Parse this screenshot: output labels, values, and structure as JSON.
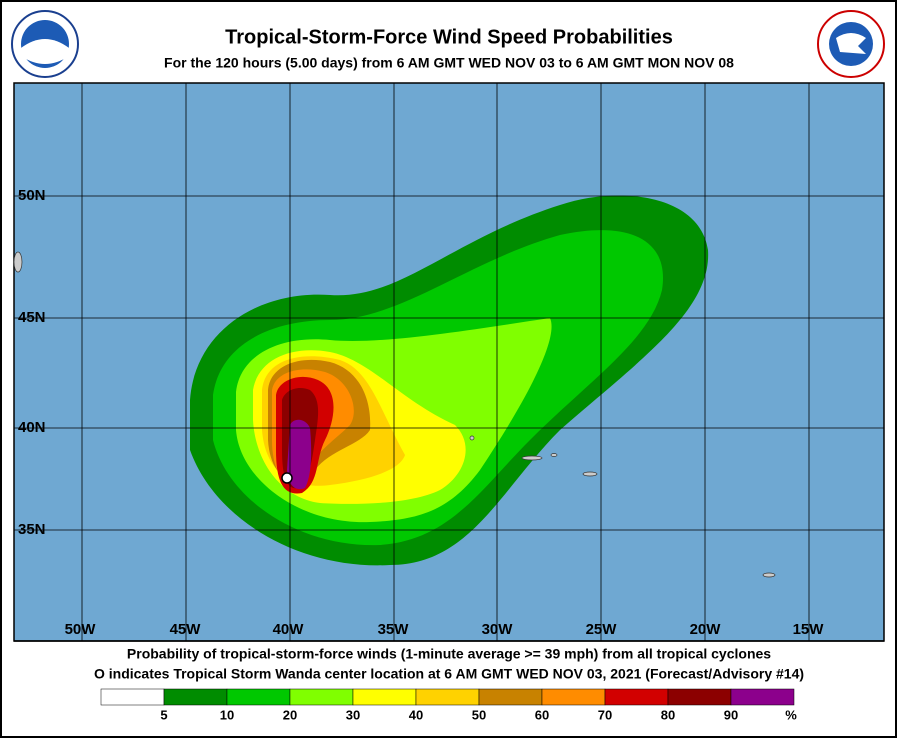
{
  "header": {
    "title": "Tropical-Storm-Force Wind Speed Probabilities",
    "subtitle": "For the 120 hours (5.00 days) from 6 AM GMT WED NOV 03 to 6 AM GMT MON NOV 08"
  },
  "map": {
    "lat_labels": [
      "50N",
      "45N",
      "40N",
      "35N"
    ],
    "lon_labels": [
      "50W",
      "45W",
      "40W",
      "35W",
      "30W",
      "25W",
      "20W",
      "15W"
    ]
  },
  "footer": {
    "line1": "Probability of tropical-storm-force winds (1-minute average >= 39 mph) from all tropical cyclones",
    "line2": "O indicates Tropical Storm Wanda center location at 6 AM GMT WED NOV 03, 2021 (Forecast/Advisory #14)"
  },
  "legend": {
    "ticks": [
      "5",
      "10",
      "20",
      "30",
      "40",
      "50",
      "60",
      "70",
      "80",
      "90"
    ],
    "unit": "%",
    "colors": [
      "#ffffff",
      "#008c00",
      "#00c800",
      "#80ff00",
      "#ffff00",
      "#ffd200",
      "#c88200",
      "#ff8c00",
      "#d20000",
      "#8c0000",
      "#8c008c"
    ]
  }
}
